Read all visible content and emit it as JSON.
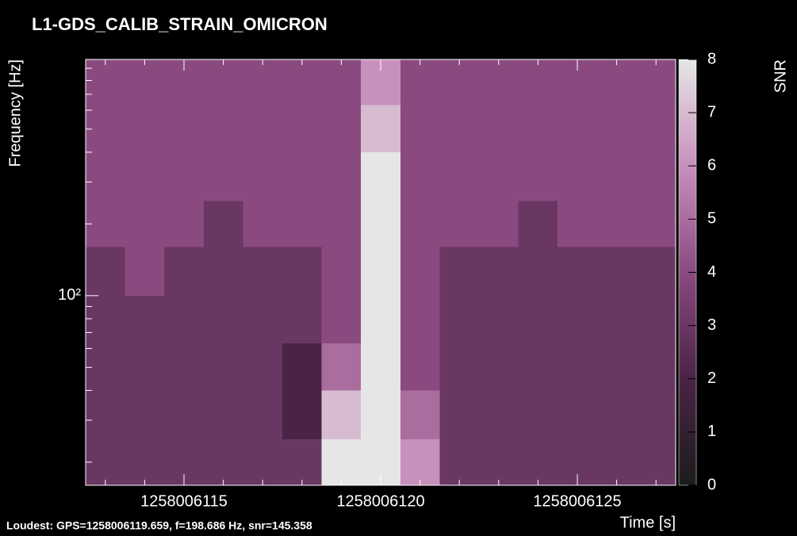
{
  "chart_data": {
    "type": "heatmap",
    "title": "L1-GDS_CALIB_STRAIN_OMICRON",
    "annotation": "Loudest: GPS=1258006119.659, f=198.686 Hz, snr=145.358",
    "xlabel": "Time [s]",
    "ylabel": "Frequency [Hz]",
    "colorbar_label": "SNR",
    "xlim": [
      1258006112.5,
      1258006127.5
    ],
    "xticks": [
      1258006115,
      1258006120,
      1258006125
    ],
    "xminor_ticks": [
      1258006113,
      1258006114,
      1258006116,
      1258006117,
      1258006118,
      1258006119,
      1258006121,
      1258006122,
      1258006123,
      1258006124,
      1258006126,
      1258006127
    ],
    "ylim": [
      16,
      980
    ],
    "ylog": true,
    "yticks": [
      {
        "value": 100,
        "label": "10²"
      }
    ],
    "yminor_ticks": [
      20,
      30,
      40,
      50,
      60,
      70,
      80,
      90,
      200,
      300,
      400,
      500,
      600,
      700,
      800,
      900
    ],
    "x_edges": [
      1258006112.5,
      1258006113.5,
      1258006114.5,
      1258006115.5,
      1258006116.5,
      1258006117.5,
      1258006118.5,
      1258006119.5,
      1258006120.5,
      1258006121.5,
      1258006122.5,
      1258006123.5,
      1258006124.5,
      1258006125.5,
      1258006126.5,
      1258006127.5
    ],
    "y_edges": [
      16,
      25,
      40,
      63,
      100,
      160,
      250,
      400,
      630,
      980
    ],
    "z": [
      [
        3,
        3,
        3,
        3,
        3,
        3,
        8,
        8,
        6,
        3,
        3,
        3,
        3,
        3,
        3
      ],
      [
        3,
        3,
        3,
        3,
        3,
        2,
        7,
        8,
        5,
        3,
        3,
        3,
        3,
        3,
        3
      ],
      [
        3,
        3,
        3,
        3,
        3,
        2,
        5,
        8,
        4,
        3,
        3,
        3,
        3,
        3,
        3
      ],
      [
        3,
        3,
        3,
        3,
        3,
        3,
        4,
        8,
        4,
        3,
        3,
        3,
        3,
        3,
        3
      ],
      [
        3,
        4,
        3,
        3,
        3,
        3,
        4,
        8,
        4,
        3,
        3,
        3,
        3,
        3,
        3
      ],
      [
        4,
        4,
        4,
        3,
        4,
        4,
        4,
        8,
        4,
        4,
        4,
        3,
        4,
        4,
        4
      ],
      [
        4,
        4,
        4,
        4,
        4,
        4,
        4,
        8,
        4,
        4,
        4,
        4,
        4,
        4,
        4
      ],
      [
        4,
        4,
        4,
        4,
        4,
        4,
        4,
        7,
        4,
        4,
        4,
        4,
        4,
        4,
        4
      ],
      [
        4,
        4,
        4,
        4,
        4,
        4,
        4,
        6,
        4,
        4,
        4,
        4,
        4,
        4,
        4
      ]
    ],
    "clim": [
      0,
      8
    ],
    "cticks": [
      0,
      1,
      2,
      3,
      4,
      5,
      6,
      7,
      8
    ],
    "colormap": [
      "#1c1c1c",
      "#4a2445",
      "#8a4a80",
      "#c890bc",
      "#e6e6e6"
    ]
  }
}
